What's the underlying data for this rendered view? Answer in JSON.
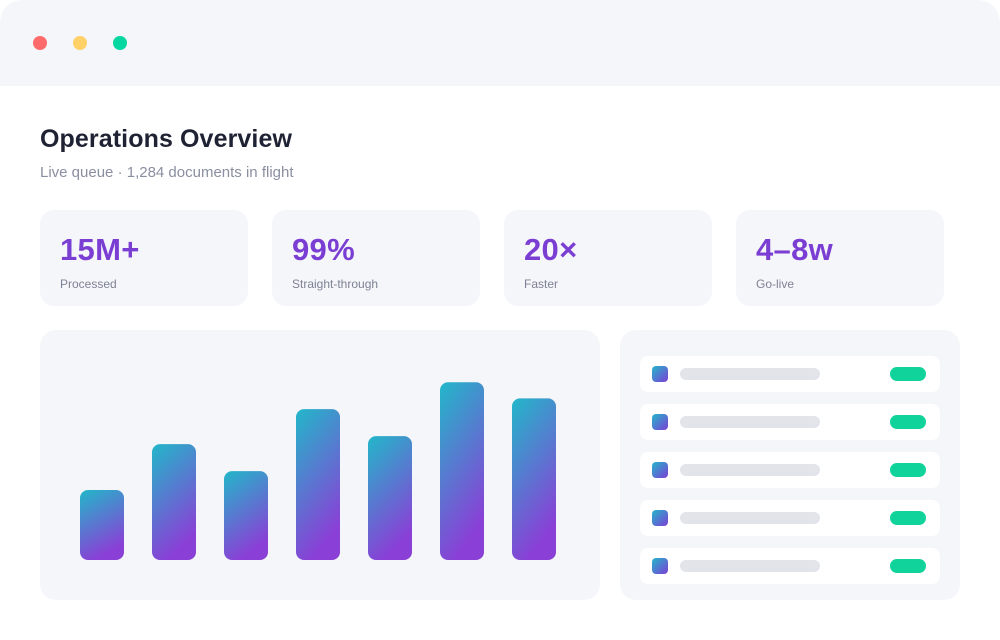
{
  "window": {
    "controls": [
      {
        "name": "close",
        "color": "#ff6b6b"
      },
      {
        "name": "minimize",
        "color": "#ffd166"
      },
      {
        "name": "maximize",
        "color": "#06d6a0"
      }
    ]
  },
  "header": {
    "title": "Operations Overview",
    "subtitle": "Live queue · 1,284 documents in flight"
  },
  "stats": [
    {
      "value": "15M+",
      "label": "Processed"
    },
    {
      "value": "99%",
      "label": "Straight-through"
    },
    {
      "value": "20×",
      "label": "Faster"
    },
    {
      "value": "4–8w",
      "label": "Go-live"
    }
  ],
  "colors": {
    "accent": "#7b3ed3",
    "bar_gradient_top": "#22b7c9",
    "bar_gradient_bottom": "#8a3fd6",
    "status_pill": "#0fd39a",
    "panel_bg": "#f5f6fa"
  },
  "chart_data": {
    "type": "bar",
    "values": [
      26,
      43,
      33,
      56,
      46,
      66,
      60
    ],
    "ylim": [
      0,
      75
    ],
    "grid": false,
    "legend": "none"
  },
  "queue_list": {
    "rows": [
      {
        "status": "active"
      },
      {
        "status": "active"
      },
      {
        "status": "active"
      },
      {
        "status": "active"
      },
      {
        "status": "active"
      }
    ]
  }
}
